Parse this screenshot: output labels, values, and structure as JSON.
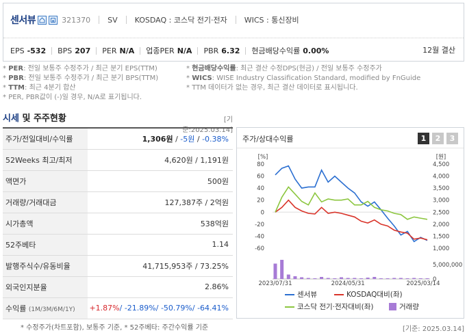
{
  "header": {
    "company_name": "센서뷰",
    "code": "321370",
    "sv": "SV",
    "market": "KOSDAQ : 코스닥 전기·전자",
    "wics": "WICS : 통신장비",
    "fiscal": "12월 결산",
    "metrics": [
      {
        "label": "EPS",
        "value": "-532"
      },
      {
        "label": "BPS",
        "value": "207"
      },
      {
        "label": "PER",
        "value": "N/A"
      },
      {
        "label": "업종PER",
        "value": "N/A"
      },
      {
        "label": "PBR",
        "value": "6.32"
      },
      {
        "label": "현금배당수익률",
        "value": "0.00%"
      }
    ]
  },
  "notes": {
    "per": "PER",
    "per_text": ": 전일 보통주 수정주가 / 최근 분기 EPS(TTM)",
    "pbr": "PBR",
    "pbr_text": ": 전일 보통주 수정주가 / 최근 분기 BPS(TTM)",
    "ttm": "TTM",
    "ttm_text": ": 최근 4분기 합산",
    "neg": "PER, PBR값이 (-)일 경우, N/A로 표기됩니다.",
    "div": "현금배당수익률",
    "div_text": ": 최근 결산 수정DPS(현금) / 전일 보통주 수정주가",
    "wics": "WICS",
    "wics_text": ": WISE Industry Classification Standard, modified by FnGuide",
    "ttm_none": "TTM 데이터가 없는 경우, 최근 결산 데이터로 표시됩니다."
  },
  "section": {
    "title_accent": "시세",
    "title_rest": "및 주주현황",
    "base_date": "[기준:2025.03.14]"
  },
  "market_table": {
    "price_label": "주가/전일대비/수익률",
    "price": "1,306원",
    "price_sep": " / ",
    "change": "-5원",
    "change_sep": " / ",
    "return": "-0.38%",
    "w52_label": "52Weeks 최고/최저",
    "w52_value": "4,620원 / 1,191원",
    "face_label": "액면가",
    "face_value": "500원",
    "vol_label": "거래량/거래대금",
    "vol_value": "127,387주 / 2억원",
    "mcap_label": "시가총액",
    "mcap_value": "538억원",
    "beta_label": "52주베타",
    "beta_value": "1.14",
    "shares_label": "발행주식수/유동비율",
    "shares_value": "41,715,953주 / 73.25%",
    "foreign_label": "외국인지분율",
    "foreign_value": "2.86%",
    "ret_label": "수익률",
    "ret_periods": "(1M/3M/6M/1Y)",
    "ret_1m": "+1.87%",
    "ret_3m": "-21.89%",
    "ret_6m": "-50.79%",
    "ret_1y": "-64.41%",
    "ret_sep": "/ "
  },
  "footnote": "* 수정주가(차트포함), 보통주 기준, * 52주베타: 주간수익률 기준",
  "chart_panel": {
    "title": "주가/상대수익률",
    "tabs": [
      "1",
      "2",
      "3"
    ],
    "base_date": "[기준: 2025.03.14]"
  },
  "chart_data": {
    "type": "line",
    "left_unit": "[%]",
    "right_unit": "[원]",
    "y_left_ticks": [
      80,
      60,
      40,
      20,
      0,
      -20,
      -40,
      -60
    ],
    "y_right_ticks": [
      "4,500",
      "4,000",
      "3,500",
      "3,000",
      "2,500",
      "2,000",
      "1,500",
      "1,000"
    ],
    "vol_tick": "5,000,000",
    "vol_zero": "0",
    "x_tick_labels": [
      "2023/07/31",
      "2024/05/31",
      "2025/03/14"
    ],
    "ylim_left": [
      -65,
      85
    ],
    "series": [
      {
        "name": "센서뷰",
        "color": "#2b6fd1",
        "values": [
          62,
          73,
          77,
          55,
          40,
          42,
          42,
          70,
          50,
          60,
          50,
          40,
          32,
          17,
          10,
          17,
          4,
          -10,
          -23,
          -38,
          -32,
          -49,
          -42,
          -47
        ]
      },
      {
        "name": "KOSDAQ대비(좌)",
        "color": "#d9342a",
        "values": [
          0,
          8,
          20,
          8,
          2,
          -2,
          -3,
          8,
          -2,
          0,
          -2,
          -5,
          -8,
          -15,
          -18,
          -13,
          -20,
          -23,
          -30,
          -33,
          -35,
          -45,
          -43,
          -46
        ]
      },
      {
        "name": "코스닥 전기·전자대비(좌)",
        "color": "#8cc63f",
        "values": [
          0,
          25,
          42,
          30,
          18,
          12,
          32,
          17,
          22,
          20,
          20,
          22,
          12,
          12,
          18,
          8,
          4,
          2,
          -2,
          -4,
          -12,
          -8,
          -10,
          -12
        ]
      }
    ],
    "volume": {
      "name": "거래량",
      "color": "#a77bd6",
      "values": [
        4.5,
        5.6,
        1.3,
        0.8,
        0.5,
        0.3,
        0.2,
        0.6,
        0.3,
        0.2,
        0.5,
        0.3,
        0.3,
        0.2,
        0.4,
        0.6,
        0.2,
        0.2,
        0.3,
        0.3,
        0.2,
        0.3,
        0.2,
        0.2
      ]
    }
  }
}
